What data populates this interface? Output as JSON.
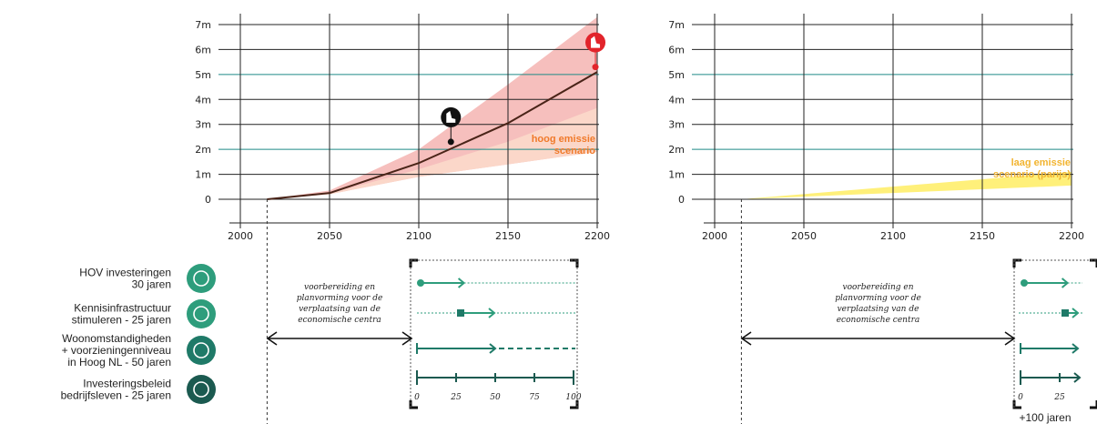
{
  "colors": {
    "grid": "#222222",
    "grid_teal": "#1f8a86",
    "curve": "#4a2418",
    "band_high": "#f6bfbd",
    "band_mid": "#fbd7c9",
    "band_low": "#fff07a",
    "high_label": "#f07a2a",
    "low_label": "#f2b430",
    "green1": "#2e9d7c",
    "green2": "#1f7a68",
    "green3": "#1b5a50",
    "red_pin": "#e2242b"
  },
  "chart_data": [
    {
      "type": "area",
      "xlim": [
        2000,
        2200
      ],
      "ylim": [
        0,
        7
      ],
      "x_ticks": [
        "2000",
        "2050",
        "2100",
        "2150",
        "2200"
      ],
      "y_ticks": [
        "0",
        "1m",
        "2m",
        "3m",
        "4m",
        "5m",
        "6m",
        "7m"
      ],
      "grid": true,
      "highlight_lines_y": [
        2,
        5
      ],
      "series": [
        {
          "name": "hoog emissie scenario",
          "x": [
            2015,
            2050,
            2100,
            2150,
            2200
          ],
          "y": [
            0,
            0.25,
            1.45,
            3.05,
            5.1
          ],
          "band_upper": [
            0,
            0.35,
            2.0,
            4.6,
            7.3
          ],
          "band_lower": [
            0,
            0.2,
            0.9,
            1.4,
            1.9
          ]
        }
      ],
      "markers": [
        {
          "icon": "tide-icon",
          "x": 2118,
          "y": 2.3
        },
        {
          "icon": "tide-icon",
          "x": 2199,
          "y": 5.3
        }
      ],
      "annotations": {
        "scenario_line1": "hoog emissie",
        "scenario_line2": "scenario"
      }
    },
    {
      "type": "area",
      "xlim": [
        2000,
        2200
      ],
      "ylim": [
        0,
        7
      ],
      "x_ticks": [
        "2000",
        "2050",
        "2100",
        "2150",
        "2200"
      ],
      "y_ticks": [
        "0",
        "1m",
        "2m",
        "3m",
        "4m",
        "5m",
        "6m",
        "7m"
      ],
      "grid": true,
      "highlight_lines_y": [
        2,
        5
      ],
      "series": [
        {
          "name": "laag emissie scenario (parijs)",
          "x": [
            2015,
            2200
          ],
          "band_upper": [
            0,
            1.1
          ],
          "band_lower": [
            0,
            0.55
          ]
        }
      ],
      "annotations": {
        "scenario_line1": "laag emissie",
        "scenario_line2": "scenario (parijs)"
      }
    }
  ],
  "measures": [
    {
      "line1": "HOV investeringen",
      "line2": "30 jaren",
      "line3": "",
      "icon": "bus-icon",
      "years": 30
    },
    {
      "line1": "Kennisinfrastructuur",
      "line2": "stimuleren - 25 jaren",
      "line3": "",
      "icon": "lightbulb-icon",
      "years": 25
    },
    {
      "line1": "Woonomstandigheden",
      "line2": "+ voorzieningenniveau",
      "line3": "in Hoog NL - 50 jaren",
      "icon": "house-icon",
      "years": 50
    },
    {
      "line1": "Investeringsbeleid",
      "line2": "bedrijfsleven - 25 jaren",
      "line3": "",
      "icon": "money-icon",
      "years": 25
    }
  ],
  "prep_text": [
    "voorbereiding en",
    "planvorming voor de",
    "verplaatsing van de",
    "economische centra"
  ],
  "scale_ticks": [
    "0",
    "25",
    "50",
    "75",
    "100"
  ],
  "scale_ticks_right": [
    "0",
    "25"
  ],
  "footer": "+100 jaren"
}
